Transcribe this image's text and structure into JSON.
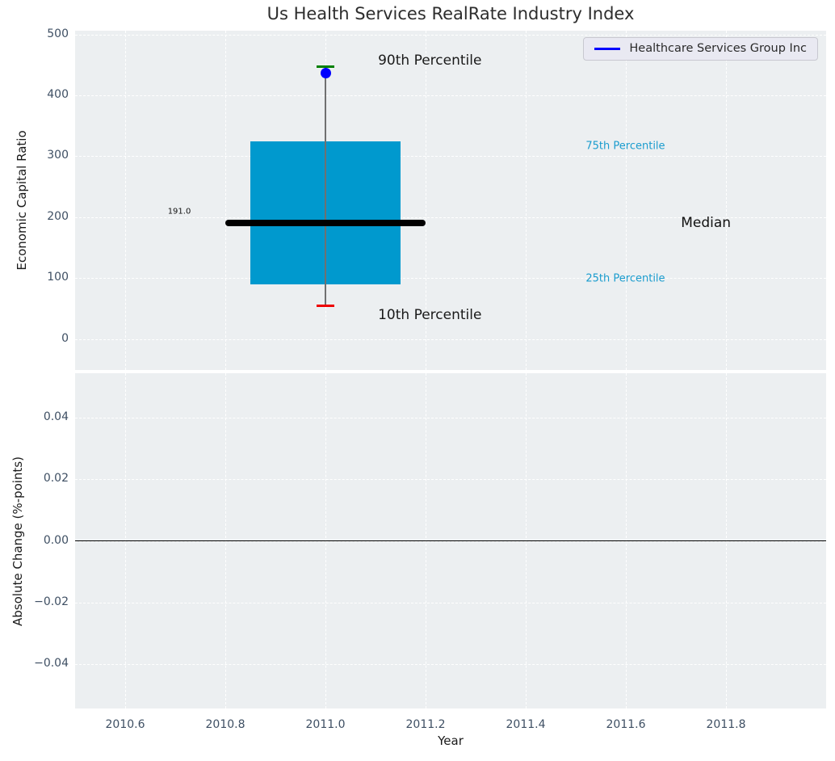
{
  "title": "Us Health Services RealRate Industry Index",
  "legend": {
    "label": "Healthcare Services Group Inc",
    "line_color": "#0000ff"
  },
  "style": {
    "figure_bg": "#ffffff",
    "plot_bg": "#eceff1",
    "grid_color": "#ffffff",
    "box_fill": "#0099ce",
    "whisker_color": "#707070",
    "median_color": "#000000",
    "cap_top_color": "#008000",
    "cap_bottom_color": "#ee0000",
    "point_color": "#0000ff",
    "tick_label_color": "#3e4f63",
    "axis_label_color": "#1a1a1a",
    "title_color": "#2d2d2d",
    "percentile_label_color": "#1a9cce"
  },
  "chart_data": [
    {
      "type": "box",
      "title": "Us Health Services RealRate Industry Index",
      "ylabel": "Economic Capital Ratio",
      "xlabel": "",
      "legend_label": "Healthcare Services Group Inc",
      "legend_position": "upper right",
      "grid": "white dashed, on",
      "xlim": [
        2010.5,
        2012.0
      ],
      "ylim": [
        -51,
        506
      ],
      "x_ticks": [
        {
          "v": 2010.6,
          "label": "2010.6"
        },
        {
          "v": 2010.8,
          "label": "2010.8"
        },
        {
          "v": 2011.0,
          "label": "2011.0"
        },
        {
          "v": 2011.2,
          "label": "2011.2"
        },
        {
          "v": 2011.4,
          "label": "2011.4"
        },
        {
          "v": 2011.6,
          "label": "2011.6"
        },
        {
          "v": 2011.8,
          "label": "2011.8"
        }
      ],
      "y_ticks": [
        {
          "v": 500,
          "label": "500"
        },
        {
          "v": 400,
          "label": "400"
        },
        {
          "v": 300,
          "label": "300"
        },
        {
          "v": 200,
          "label": "200"
        },
        {
          "v": 100,
          "label": "100"
        },
        {
          "v": 0,
          "label": "0"
        }
      ],
      "show_x_tick_labels": false,
      "box": {
        "x": 2011.0,
        "p10": 54,
        "p25": 90,
        "median": 191.0,
        "p75": 324,
        "p90": 447,
        "box_halfwidth": 0.15,
        "median_halfwidth": 0.2,
        "cap_halfwidth": 0.018
      },
      "company_point": {
        "name": "Healthcare Services Group Inc",
        "x": 2011.0,
        "y": 437
      },
      "median_value_label": "191.0",
      "annotations": [
        {
          "text": "90th Percentile",
          "x": 2011.105,
          "y": 457,
          "size": 17,
          "color": "#1a1a1a"
        },
        {
          "text": "10th Percentile",
          "x": 2011.105,
          "y": 39,
          "size": 17,
          "color": "#1a1a1a"
        },
        {
          "text": "75th Percentile",
          "x": 2011.52,
          "y": 316,
          "size": 13,
          "color": "#1a9cce"
        },
        {
          "text": "25th Percentile",
          "x": 2011.52,
          "y": 99,
          "size": 13,
          "color": "#1a9cce"
        },
        {
          "text": "Median",
          "x": 2011.71,
          "y": 191,
          "size": 17,
          "color": "#111111"
        },
        {
          "text": "191.0",
          "x": 2010.685,
          "y": 209,
          "size": 10,
          "color": "#111111"
        }
      ]
    },
    {
      "type": "line",
      "ylabel": "Absolute Change (%-points)",
      "xlabel": "Year",
      "grid": "white dashed, on",
      "xlim": [
        2010.5,
        2012.0
      ],
      "ylim": [
        -0.0545,
        0.0545
      ],
      "x_ticks": [
        {
          "v": 2010.6,
          "label": "2010.6"
        },
        {
          "v": 2010.8,
          "label": "2010.8"
        },
        {
          "v": 2011.0,
          "label": "2011.0"
        },
        {
          "v": 2011.2,
          "label": "2011.2"
        },
        {
          "v": 2011.4,
          "label": "2011.4"
        },
        {
          "v": 2011.6,
          "label": "2011.6"
        },
        {
          "v": 2011.8,
          "label": "2011.8"
        }
      ],
      "y_ticks": [
        {
          "v": 0.04,
          "label": "0.04"
        },
        {
          "v": 0.02,
          "label": "0.02"
        },
        {
          "v": 0.0,
          "label": "0.00"
        },
        {
          "v": -0.02,
          "label": "−0.02"
        },
        {
          "v": -0.04,
          "label": "−0.04"
        }
      ],
      "show_x_tick_labels": true,
      "zero_line": true,
      "series": [
        {
          "name": "Healthcare Services Group Inc",
          "x": [],
          "y": []
        }
      ]
    }
  ]
}
